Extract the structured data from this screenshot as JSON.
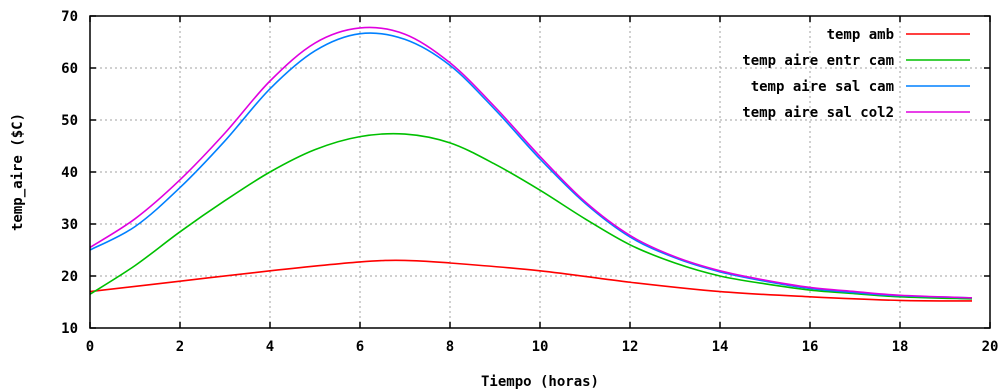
{
  "chart_data": {
    "type": "line",
    "title": "",
    "xlabel": "Tiempo (horas)",
    "ylabel": "temp_aire ($C)",
    "xlim": [
      0,
      20
    ],
    "ylim": [
      10,
      70
    ],
    "xticks": [
      0,
      2,
      4,
      6,
      8,
      10,
      12,
      14,
      16,
      18,
      20
    ],
    "yticks": [
      10,
      20,
      30,
      40,
      50,
      60,
      70
    ],
    "grid": true,
    "legend_position": "top-right",
    "series": [
      {
        "name": "temp amb",
        "color": "#ff0000",
        "points": [
          [
            0,
            17
          ],
          [
            2,
            19
          ],
          [
            4,
            21
          ],
          [
            6,
            22.7
          ],
          [
            7,
            23
          ],
          [
            8,
            22.5
          ],
          [
            10,
            21
          ],
          [
            12,
            18.8
          ],
          [
            14,
            17
          ],
          [
            16,
            16
          ],
          [
            18,
            15.3
          ],
          [
            19.6,
            15.2
          ]
        ]
      },
      {
        "name": "temp aire entr cam",
        "color": "#00c000",
        "points": [
          [
            0,
            16.5
          ],
          [
            1,
            22
          ],
          [
            2,
            28.5
          ],
          [
            3,
            34.5
          ],
          [
            4,
            40
          ],
          [
            5,
            44.3
          ],
          [
            6,
            46.8
          ],
          [
            7,
            47.3
          ],
          [
            8,
            45.6
          ],
          [
            9,
            41.5
          ],
          [
            10,
            36.5
          ],
          [
            11,
            31
          ],
          [
            12,
            26
          ],
          [
            13,
            22.5
          ],
          [
            14,
            20
          ],
          [
            15,
            18.5
          ],
          [
            16,
            17.3
          ],
          [
            17,
            16.6
          ],
          [
            18,
            16
          ],
          [
            19.6,
            15.6
          ]
        ]
      },
      {
        "name": "temp aire sal cam",
        "color": "#0080ff",
        "points": [
          [
            0,
            25
          ],
          [
            1,
            29.5
          ],
          [
            2,
            37
          ],
          [
            3,
            46
          ],
          [
            4,
            56
          ],
          [
            5,
            63.3
          ],
          [
            6,
            66.6
          ],
          [
            7,
            65.5
          ],
          [
            8,
            60.5
          ],
          [
            9,
            52
          ],
          [
            10,
            42.5
          ],
          [
            11,
            34
          ],
          [
            12,
            27.5
          ],
          [
            13,
            23.5
          ],
          [
            14,
            20.8
          ],
          [
            15,
            19
          ],
          [
            16,
            17.6
          ],
          [
            17,
            16.8
          ],
          [
            18,
            16.2
          ],
          [
            19.6,
            15.8
          ]
        ]
      },
      {
        "name": "temp aire sal col2",
        "color": "#e000e0",
        "points": [
          [
            0,
            25.5
          ],
          [
            1,
            31
          ],
          [
            2,
            38.5
          ],
          [
            3,
            47.5
          ],
          [
            4,
            57.5
          ],
          [
            5,
            64.8
          ],
          [
            6,
            67.7
          ],
          [
            7,
            66.5
          ],
          [
            8,
            61
          ],
          [
            9,
            52.5
          ],
          [
            10,
            43
          ],
          [
            11,
            34.3
          ],
          [
            12,
            27.8
          ],
          [
            13,
            23.7
          ],
          [
            14,
            21
          ],
          [
            15,
            19.2
          ],
          [
            16,
            17.8
          ],
          [
            17,
            17
          ],
          [
            18,
            16.3
          ],
          [
            19.6,
            15.8
          ]
        ]
      }
    ]
  }
}
